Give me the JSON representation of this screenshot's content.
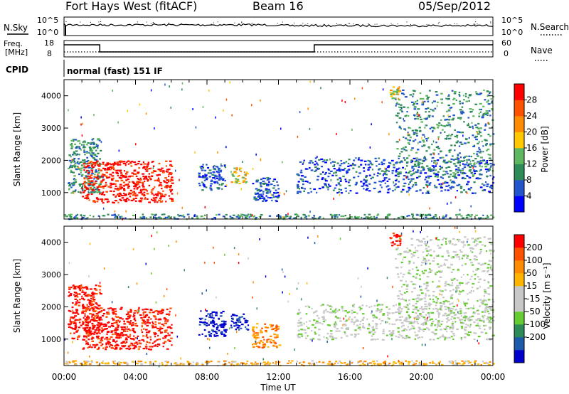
{
  "header": {
    "site_title": "Fort Hays West (fitACF)",
    "beam": "Beam 16",
    "date": "05/Sep/2012"
  },
  "top_panels": {
    "nsky_label": "N.Sky",
    "nsky_ticks": [
      "10^5",
      "10^0"
    ],
    "nsearch_ticks": [
      "10^5",
      "10^0"
    ],
    "nsearch_label": "N.Search",
    "freq_label": "Freq.",
    "freq_unit": "[MHz]",
    "freq_ticks": [
      "18",
      "8"
    ],
    "nave_ticks": [
      "60",
      "0"
    ],
    "nave_label": "Nave",
    "cpid_label": "CPID",
    "cpid_value": "normal (fast) 151 IF",
    "freq_steps": [
      {
        "start_hour": 0,
        "end_hour": 2,
        "value": "high"
      },
      {
        "start_hour": 2,
        "end_hour": 14,
        "value": "low"
      },
      {
        "start_hour": 14,
        "end_hour": 24,
        "value": "high"
      }
    ]
  },
  "colors": {
    "power": [
      "#0000ff",
      "#2255cc",
      "#2e8b57",
      "#5fb85f",
      "#ffc800",
      "#ff8c00",
      "#ff5000",
      "#ff0000"
    ],
    "velocity": [
      "#0000cc",
      "#1e5aaa",
      "#2e8b57",
      "#66cc33",
      "#c8c8c8",
      "#c8c8c8",
      "#ffb400",
      "#ff8c00",
      "#ff5000",
      "#ff0000"
    ],
    "sky_trace": "#000000"
  },
  "chart_data": [
    {
      "type": "heatmap",
      "title": "",
      "ylabel": "Slant Range [km]",
      "xlim": [
        0,
        24
      ],
      "ylim": [
        180,
        4500
      ],
      "yticks": [
        "1000",
        "2000",
        "3000",
        "4000"
      ],
      "colorbar_label": "Power [dB]",
      "colorbar_ticks": [
        "4",
        "8",
        "12",
        "16",
        "20",
        "24",
        "28"
      ],
      "regions": [
        {
          "name": "near-range clutter",
          "x": [
            0.0,
            24.0
          ],
          "y": [
            200,
            350
          ],
          "level": 2
        },
        {
          "name": "morning echo",
          "x": [
            0.2,
            2.0
          ],
          "y": [
            1000,
            2700
          ],
          "level": 2
        },
        {
          "name": "main echo",
          "x": [
            1.0,
            6.0
          ],
          "y": [
            700,
            2000
          ],
          "level": 7
        },
        {
          "name": "patch 08:00",
          "x": [
            7.5,
            9.0
          ],
          "y": [
            1100,
            1900
          ],
          "level": 1
        },
        {
          "name": "patch 10:00",
          "x": [
            9.3,
            10.3
          ],
          "y": [
            1300,
            1800
          ],
          "level": 4
        },
        {
          "name": "patch 11:00",
          "x": [
            10.5,
            12.0
          ],
          "y": [
            750,
            1500
          ],
          "level": 1
        },
        {
          "name": "evening echo 1",
          "x": [
            13.0,
            24.0
          ],
          "y": [
            1000,
            2100
          ],
          "level": 1
        },
        {
          "name": "evening echo 2",
          "x": [
            18.5,
            24.0
          ],
          "y": [
            1500,
            4200
          ],
          "level": 2
        },
        {
          "name": "far echo 19:00",
          "x": [
            18.2,
            18.8
          ],
          "y": [
            3900,
            4300
          ],
          "level": 4
        }
      ]
    },
    {
      "type": "heatmap",
      "title": "",
      "xlabel": "Time UT",
      "ylabel": "Slant Range [km]",
      "xlim": [
        0,
        24
      ],
      "ylim": [
        180,
        4500
      ],
      "xticks": [
        "00:00",
        "04:00",
        "08:00",
        "12:00",
        "16:00",
        "20:00",
        "00:00"
      ],
      "yticks": [
        "1000",
        "2000",
        "3000",
        "4000"
      ],
      "colorbar_label": "Velocity [m s⁻¹]",
      "colorbar_ticks": [
        "200",
        "100",
        "50",
        "15",
        "-15",
        "-50",
        "-100",
        "-200"
      ],
      "regions": [
        {
          "name": "near-range clutter",
          "x": [
            0.0,
            24.0
          ],
          "y": [
            200,
            350
          ],
          "level": 6
        },
        {
          "name": "morning echo",
          "x": [
            0.2,
            2.0
          ],
          "y": [
            1000,
            2700
          ],
          "level": 9
        },
        {
          "name": "main echo",
          "x": [
            1.0,
            6.0
          ],
          "y": [
            700,
            2000
          ],
          "level": 9
        },
        {
          "name": "patch 08:00",
          "x": [
            7.5,
            9.0
          ],
          "y": [
            1100,
            1900
          ],
          "level": 0
        },
        {
          "name": "patch 10:00",
          "x": [
            9.3,
            10.3
          ],
          "y": [
            1300,
            1800
          ],
          "level": 0
        },
        {
          "name": "patch 11:00",
          "x": [
            10.5,
            12.0
          ],
          "y": [
            750,
            1500
          ],
          "level": 7
        },
        {
          "name": "evening echo 1",
          "x": [
            13.0,
            24.0
          ],
          "y": [
            1000,
            2100
          ],
          "level": 4
        },
        {
          "name": "evening echo 2",
          "x": [
            18.5,
            24.0
          ],
          "y": [
            1500,
            4200
          ],
          "level": 4
        },
        {
          "name": "far echo 19:00",
          "x": [
            18.2,
            18.8
          ],
          "y": [
            3900,
            4300
          ],
          "level": 9
        }
      ]
    }
  ]
}
